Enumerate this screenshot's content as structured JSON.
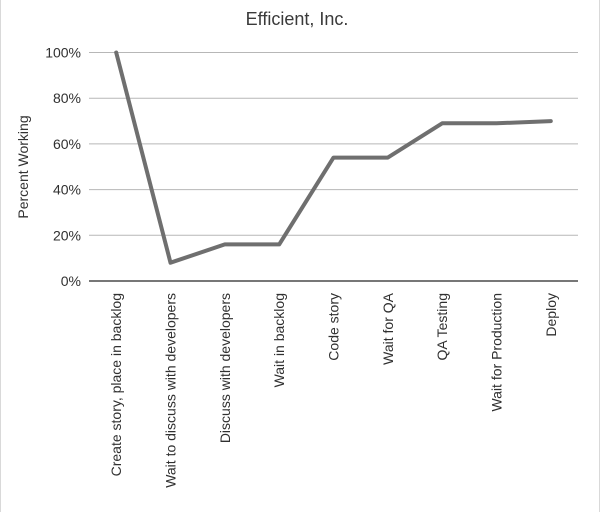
{
  "chart_data": {
    "type": "line",
    "title": "Efficient, Inc.",
    "xlabel": "",
    "ylabel": "Percent Working",
    "categories": [
      "Create story, place in backlog",
      "Wait to discuss with developers",
      "Discuss with developers",
      "Wait in backlog",
      "Code story",
      "Wait for QA",
      "QA Testing",
      "Wait for Production",
      "Deploy"
    ],
    "series": [
      {
        "name": "Percent Working",
        "values": [
          100,
          8,
          16,
          16,
          54,
          54,
          69,
          69,
          70
        ]
      }
    ],
    "ylim": [
      0,
      100
    ],
    "ytick_step": 20,
    "ytick_suffix": "%",
    "grid": true,
    "legend_position": "none",
    "colors": {
      "line": "#6f6f6f",
      "gridline": "#b7b7b7",
      "axis": "#4a4a4a",
      "text": "#303030",
      "title": "#3a3a3a"
    }
  }
}
